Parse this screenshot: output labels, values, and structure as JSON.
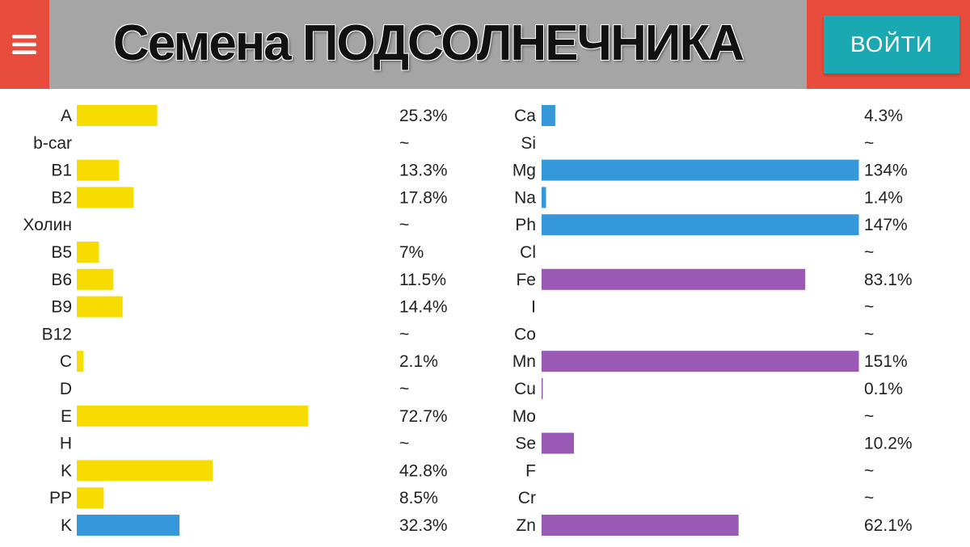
{
  "header": {
    "title": "Семена ПОДСОЛНЕЧНИКА",
    "login_label": "ВОЙТИ",
    "menu_icon": "hamburger-menu-icon",
    "colors": {
      "bar": "#e84c3d",
      "title_bg": "#a5a5a5",
      "login_bg": "#1aa8b3"
    }
  },
  "chart_data": [
    {
      "type": "bar",
      "orientation": "horizontal",
      "categories": [
        "A",
        "b-car",
        "B1",
        "B2",
        "Холин",
        "B5",
        "B6",
        "B9",
        "B12",
        "C",
        "D",
        "E",
        "H",
        "K",
        "PP",
        "K"
      ],
      "values": [
        25.3,
        null,
        13.3,
        17.8,
        null,
        7,
        11.5,
        14.4,
        null,
        2.1,
        null,
        72.7,
        null,
        42.8,
        8.5,
        32.3
      ],
      "value_labels": [
        "25.3%",
        "~",
        "13.3%",
        "17.8%",
        "~",
        "7%",
        "11.5%",
        "14.4%",
        "~",
        "2.1%",
        "~",
        "72.7%",
        "~",
        "42.8%",
        "8.5%",
        "32.3%"
      ],
      "colors": [
        "#f6dc00",
        "#f6dc00",
        "#f6dc00",
        "#f6dc00",
        "#f6dc00",
        "#f6dc00",
        "#f6dc00",
        "#f6dc00",
        "#f6dc00",
        "#f6dc00",
        "#f6dc00",
        "#f6dc00",
        "#f6dc00",
        "#f6dc00",
        "#f6dc00",
        "#3498db"
      ],
      "xlim": [
        0,
        100
      ],
      "unit": "%"
    },
    {
      "type": "bar",
      "orientation": "horizontal",
      "categories": [
        "Ca",
        "Si",
        "Mg",
        "Na",
        "Ph",
        "Cl",
        "Fe",
        "I",
        "Co",
        "Mn",
        "Cu",
        "Mo",
        "Se",
        "F",
        "Cr",
        "Zn"
      ],
      "values": [
        4.3,
        null,
        134,
        1.4,
        147,
        null,
        83.1,
        null,
        null,
        151,
        0.1,
        null,
        10.2,
        null,
        null,
        62.1
      ],
      "value_labels": [
        "4.3%",
        "~",
        "134%",
        "1.4%",
        "147%",
        "~",
        "83.1%",
        "~",
        "~",
        "151%",
        "0.1%",
        "~",
        "10.2%",
        "~",
        "~",
        "62.1%"
      ],
      "colors": [
        "#3498db",
        "#3498db",
        "#3498db",
        "#3498db",
        "#3498db",
        "#3498db",
        "#9b59b6",
        "#9b59b6",
        "#9b59b6",
        "#9b59b6",
        "#9b59b6",
        "#9b59b6",
        "#9b59b6",
        "#9b59b6",
        "#9b59b6",
        "#9b59b6"
      ],
      "xlim": [
        0,
        100
      ],
      "cap": 100,
      "unit": "%"
    }
  ]
}
